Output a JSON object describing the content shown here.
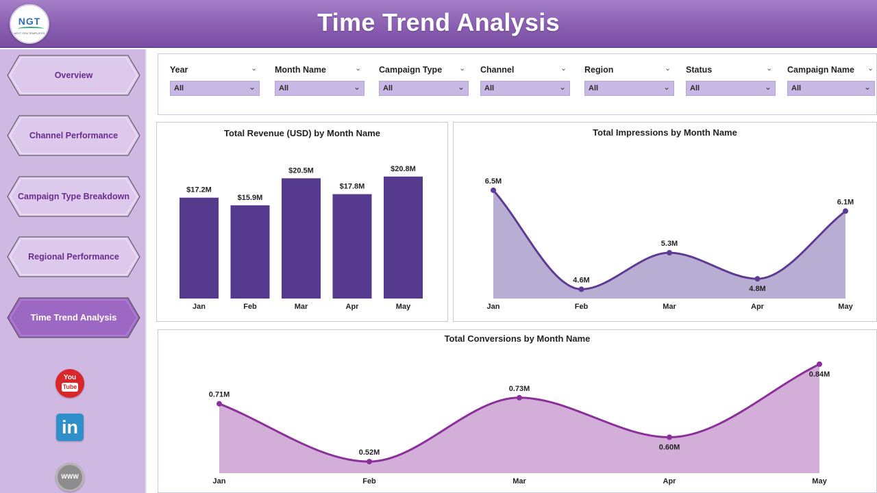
{
  "header": {
    "title": "Time Trend Analysis",
    "logo_text": "NGT",
    "logo_tagline": "NEXT GEN TEMPLATES"
  },
  "sidebar": {
    "items": [
      {
        "label": "Overview",
        "active": false
      },
      {
        "label": "Channel Performance",
        "active": false
      },
      {
        "label": "Campaign Type Breakdown",
        "active": false
      },
      {
        "label": "Regional Performance",
        "active": false
      },
      {
        "label": "Time Trend Analysis",
        "active": true
      }
    ],
    "social": {
      "youtube_top": "You",
      "youtube_bottom": "Tube",
      "linkedin": "in",
      "website": "WWW"
    }
  },
  "filters": [
    {
      "label": "Year",
      "value": "All"
    },
    {
      "label": "Month Name",
      "value": "All"
    },
    {
      "label": "Campaign Type",
      "value": "All"
    },
    {
      "label": "Channel",
      "value": "All"
    },
    {
      "label": "Region",
      "value": "All"
    },
    {
      "label": "Status",
      "value": "All"
    },
    {
      "label": "Campaign Name",
      "value": "All"
    }
  ],
  "colors": {
    "accent": "#8a5fb2",
    "bar": "#553a8e",
    "area1_fill": "#b8aed3",
    "area1_line": "#5e3a93",
    "area2_fill": "#d2aed8",
    "area2_line": "#8b2f9a"
  },
  "chart_data": [
    {
      "type": "bar",
      "title": "Total Revenue (USD) by Month Name",
      "categories": [
        "Jan",
        "Feb",
        "Mar",
        "Apr",
        "May"
      ],
      "values": [
        17.2,
        15.9,
        20.5,
        17.8,
        20.8
      ],
      "labels": [
        "$17.2M",
        "$15.9M",
        "$20.5M",
        "$17.8M",
        "$20.8M"
      ],
      "ylim": [
        0,
        23
      ]
    },
    {
      "type": "area",
      "title": "Total Impressions by Month Name",
      "categories": [
        "Jan",
        "Feb",
        "Mar",
        "Apr",
        "May"
      ],
      "values": [
        6.5,
        4.6,
        5.3,
        4.8,
        6.1
      ],
      "labels": [
        "6.5M",
        "4.6M",
        "5.3M",
        "4.8M",
        "6.1M"
      ],
      "ylim": [
        4.5,
        6.8
      ]
    },
    {
      "type": "area",
      "title": "Total Conversions by Month Name",
      "categories": [
        "Jan",
        "Feb",
        "Mar",
        "Apr",
        "May"
      ],
      "values": [
        0.71,
        0.52,
        0.73,
        0.6,
        0.84
      ],
      "labels": [
        "0.71M",
        "0.52M",
        "0.73M",
        "0.60M",
        "0.84M"
      ],
      "ylim": [
        0.5,
        0.86
      ]
    }
  ]
}
